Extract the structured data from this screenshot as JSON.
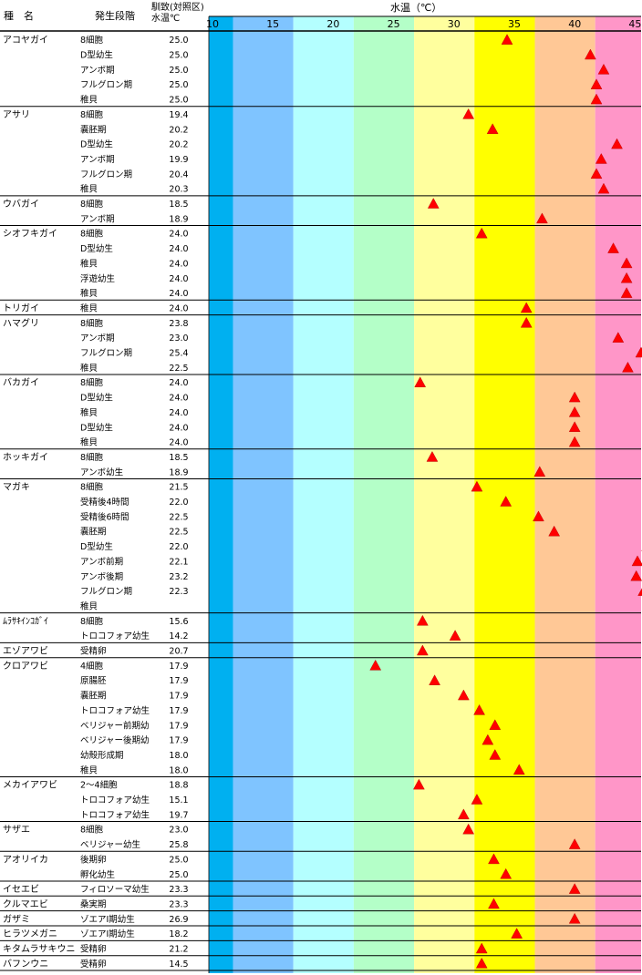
{
  "chart_data": {
    "type": "scatter",
    "title": "水温（℃）",
    "columns": {
      "species": "種　名",
      "stage": "発生段階",
      "control": "馴致(対照区)水温℃"
    },
    "x_ticks": [
      10,
      15,
      20,
      25,
      30,
      35,
      40,
      45
    ],
    "xlim": [
      10,
      45.8
    ],
    "band_colors": [
      "#00b0f0",
      "#7fc4ff",
      "#b4ffff",
      "#b4ffc8",
      "#ffff9e",
      "#ffff00",
      "#ffc896",
      "#ff96c8"
    ],
    "marker_color": "#ff0000",
    "groups": [
      {
        "species": "アコヤガイ",
        "rows": [
          {
            "stage": "8細胞",
            "control": "25.0",
            "x": 34.7
          },
          {
            "stage": "D型幼生",
            "control": "25.0",
            "x": 41.6
          },
          {
            "stage": "アンボ期",
            "control": "25.0",
            "x": 42.7
          },
          {
            "stage": "フルグロン期",
            "control": "25.0",
            "x": 42.1
          },
          {
            "stage": "稚貝",
            "control": "25.0",
            "x": 42.1
          }
        ]
      },
      {
        "species": "アサリ",
        "rows": [
          {
            "stage": "8細胞",
            "control": "19.4",
            "x": 31.5
          },
          {
            "stage": "嚢胚期",
            "control": "20.2",
            "x": 33.5
          },
          {
            "stage": "D型幼生",
            "control": "20.2",
            "x": 43.8
          },
          {
            "stage": "アンボ期",
            "control": "19.9",
            "x": 42.5
          },
          {
            "stage": "フルグロン期",
            "control": "20.4",
            "x": 42.1
          },
          {
            "stage": "稚貝",
            "control": "20.3",
            "x": 42.7
          }
        ]
      },
      {
        "species": "ウバガイ",
        "rows": [
          {
            "stage": "8細胞",
            "control": "18.5",
            "x": 28.6
          },
          {
            "stage": "アンボ期",
            "control": "18.9",
            "x": 37.6
          }
        ]
      },
      {
        "species": "シオフキガイ",
        "rows": [
          {
            "stage": "8細胞",
            "control": "24.0",
            "x": 32.6
          },
          {
            "stage": "D型幼生",
            "control": "24.0",
            "x": 43.5
          },
          {
            "stage": "稚貝",
            "control": "24.0",
            "x": 44.6
          },
          {
            "stage": "浮遊幼生",
            "control": "24.0",
            "x": 44.6
          },
          {
            "stage": "稚貝",
            "control": "24.0",
            "x": 44.6
          }
        ]
      },
      {
        "species": "トリガイ",
        "rows": [
          {
            "stage": "稚貝",
            "control": "24.0",
            "x": 36.3
          }
        ]
      },
      {
        "species": "ハマグリ",
        "rows": [
          {
            "stage": "8細胞",
            "control": "23.8",
            "x": 36.3
          },
          {
            "stage": "アンボ期",
            "control": "23.0",
            "x": 43.9
          },
          {
            "stage": "フルグロン期",
            "control": "25.4",
            "x": 45.8
          },
          {
            "stage": "稚貝",
            "control": "22.5",
            "x": 44.7
          }
        ]
      },
      {
        "species": "バカガイ",
        "rows": [
          {
            "stage": "8細胞",
            "control": "24.0",
            "x": 27.5
          },
          {
            "stage": "D型幼生",
            "control": "24.0",
            "x": 40.3
          },
          {
            "stage": "稚貝",
            "control": "24.0",
            "x": 40.3
          },
          {
            "stage": "D型幼生",
            "control": "24.0",
            "x": 40.3
          },
          {
            "stage": "稚貝",
            "control": "24.0",
            "x": 40.3
          }
        ]
      },
      {
        "species": "ホッキガイ",
        "rows": [
          {
            "stage": "8細胞",
            "control": "18.5",
            "x": 28.5
          },
          {
            "stage": "アンボ幼生",
            "control": "18.9",
            "x": 37.4
          }
        ]
      },
      {
        "species": "マガキ",
        "rows": [
          {
            "stage": "8細胞",
            "control": "21.5",
            "x": 32.2
          },
          {
            "stage": "受精後4時間",
            "control": "22.0",
            "x": 34.6
          },
          {
            "stage": "受精後6時間",
            "control": "22.5",
            "x": 37.3
          },
          {
            "stage": "嚢胚期",
            "control": "22.5",
            "x": 38.6
          },
          {
            "stage": "D型幼生",
            "control": "22.0",
            "x": 46.3
          },
          {
            "stage": "アンボ前期",
            "control": "22.1",
            "x": 45.5
          },
          {
            "stage": "アンボ後期",
            "control": "23.2",
            "x": 45.4
          },
          {
            "stage": "フルグロン期",
            "control": "22.3",
            "x": 46.0
          },
          {
            "stage": "稚貝",
            "control": "",
            "x": null
          }
        ]
      },
      {
        "species": "ﾑﾗｻｷｲﾝｺｶﾞｲ",
        "rows": [
          {
            "stage": "8細胞",
            "control": "15.6",
            "x": 27.7
          },
          {
            "stage": "トロコフォア幼生",
            "control": "14.2",
            "x": 30.4
          }
        ]
      },
      {
        "species": "エゾアワビ",
        "rows": [
          {
            "stage": "受精卵",
            "control": "20.7",
            "x": 27.7
          }
        ]
      },
      {
        "species": "クロアワビ",
        "rows": [
          {
            "stage": "4細胞",
            "control": "17.9",
            "x": 23.8
          },
          {
            "stage": "原腸胚",
            "control": "17.9",
            "x": 28.7
          },
          {
            "stage": "嚢胚期",
            "control": "17.9",
            "x": 31.1
          },
          {
            "stage": "トロコフォア幼生",
            "control": "17.9",
            "x": 32.4
          },
          {
            "stage": "ベリジャー前期幼",
            "control": "17.9",
            "x": 33.7
          },
          {
            "stage": "ベリジャー後期幼",
            "control": "17.9",
            "x": 33.1
          },
          {
            "stage": "幼殻形成期",
            "control": "18.0",
            "x": 33.7
          },
          {
            "stage": "稚貝",
            "control": "18.0",
            "x": 35.7
          }
        ]
      },
      {
        "species": "メカイアワビ",
        "rows": [
          {
            "stage": "2～4細胞",
            "control": "18.8",
            "x": 27.4
          },
          {
            "stage": "トロコフォア幼生",
            "control": "15.1",
            "x": 32.2
          },
          {
            "stage": "トロコフォア幼生",
            "control": "19.7",
            "x": 31.1
          }
        ]
      },
      {
        "species": "サザエ",
        "rows": [
          {
            "stage": "8細胞",
            "control": "23.0",
            "x": 31.5
          },
          {
            "stage": "ベリジャー幼生",
            "control": "25.8",
            "x": 40.3
          }
        ]
      },
      {
        "species": "アオリイカ",
        "rows": [
          {
            "stage": "後期卵",
            "control": "25.0",
            "x": 33.6
          },
          {
            "stage": "孵化幼生",
            "control": "25.0",
            "x": 34.6
          }
        ]
      },
      {
        "species": "イセエビ",
        "rows": [
          {
            "stage": "フィロソーマ幼生",
            "control": "23.3",
            "x": 40.3
          }
        ]
      },
      {
        "species": "クルマエビ",
        "rows": [
          {
            "stage": "桑実期",
            "control": "23.3",
            "x": 33.6
          }
        ]
      },
      {
        "species": "ガザミ",
        "rows": [
          {
            "stage": "ゾエアⅠ期幼生",
            "control": "26.9",
            "x": 40.3
          }
        ]
      },
      {
        "species": "ヒラツメガニ",
        "rows": [
          {
            "stage": "ゾエアⅠ期幼生",
            "control": "18.2",
            "x": 35.5
          }
        ]
      },
      {
        "species": "キタムラサキウニ",
        "rows": [
          {
            "stage": "受精卵",
            "control": "21.2",
            "x": 32.6
          }
        ]
      },
      {
        "species": "バフンウニ",
        "rows": [
          {
            "stage": "受精卵",
            "control": "14.5",
            "x": 32.6
          }
        ]
      }
    ]
  }
}
